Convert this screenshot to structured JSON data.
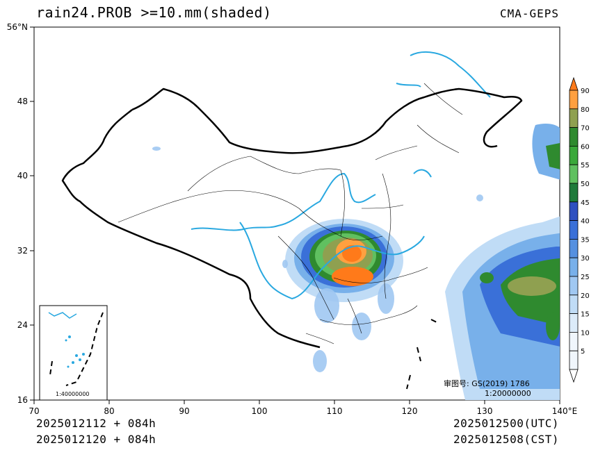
{
  "header": {
    "title": "rain24.PROB >=10.mm(shaded)",
    "source": "CMA-GEPS"
  },
  "footer": {
    "init_utc": "2025012112 + 084h",
    "init_cst": "2025012120 + 084h",
    "valid_utc": "2025012500(UTC)",
    "valid_cst": "2025012508(CST)"
  },
  "map": {
    "lat_ticks": [
      "56°N",
      "48",
      "40",
      "32",
      "24",
      "16"
    ],
    "lon_ticks": [
      "70",
      "80",
      "90",
      "100",
      "110",
      "120",
      "130",
      "140°E"
    ],
    "approval_line1": "审图号: GS(2019) 1786",
    "approval_line2": "1:20000000",
    "inset_scale": "1:40000000",
    "border_color": "#000000",
    "river_color": "#29a8e0"
  },
  "colorbar": {
    "levels": [
      "90",
      "80",
      "70",
      "60",
      "55",
      "50",
      "45",
      "40",
      "35",
      "30",
      "25",
      "20",
      "15",
      "10",
      "5"
    ],
    "colors": [
      "#ff7a1a",
      "#ffa040",
      "#8fa050",
      "#2f8a2f",
      "#3aa83a",
      "#60c060",
      "#1f7a3a",
      "#2f50c0",
      "#3a70d8",
      "#5590e0",
      "#78b0ea",
      "#a0c8f2",
      "#c0dcf6",
      "#dcebf9",
      "#f0f6fc"
    ]
  }
}
